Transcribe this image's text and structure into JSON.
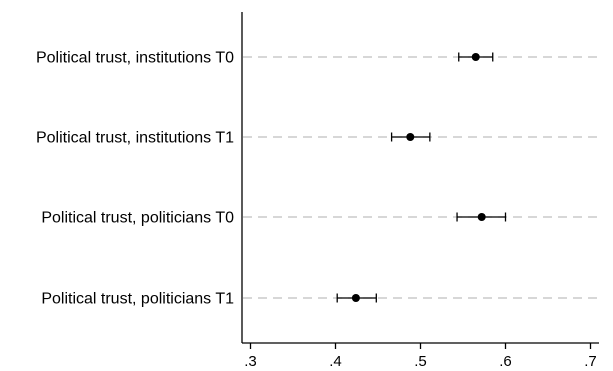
{
  "chart_data": {
    "type": "scatter",
    "subtype": "coefficient-plot-with-confidence-intervals",
    "title": "",
    "xlabel": "",
    "ylabel": "",
    "xlim": [
      0.29,
      0.71
    ],
    "x_ticks": [
      0.3,
      0.4,
      0.5,
      0.6,
      0.7
    ],
    "x_tick_labels": [
      ".3",
      ".4",
      ".5",
      ".6",
      ".7"
    ],
    "grid": "horizontal dashed lines at each category",
    "legend": "none",
    "colors": {
      "marker": "#000000",
      "axis": "#000000",
      "gridline": "#bfbfbf",
      "background": "#ffffff"
    },
    "categories": [
      "Political trust, institutions T0",
      "Political trust, institutions T1",
      "Political trust, politicians T0",
      "Political trust, politicians T1"
    ],
    "points": [
      {
        "category": "Political trust, institutions T0",
        "estimate": 0.565,
        "ci_low": 0.545,
        "ci_high": 0.585
      },
      {
        "category": "Political trust, institutions T1",
        "estimate": 0.488,
        "ci_low": 0.466,
        "ci_high": 0.511
      },
      {
        "category": "Political trust, politicians T0",
        "estimate": 0.572,
        "ci_low": 0.543,
        "ci_high": 0.6
      },
      {
        "category": "Political trust, politicians T1",
        "estimate": 0.424,
        "ci_low": 0.402,
        "ci_high": 0.448
      }
    ]
  }
}
